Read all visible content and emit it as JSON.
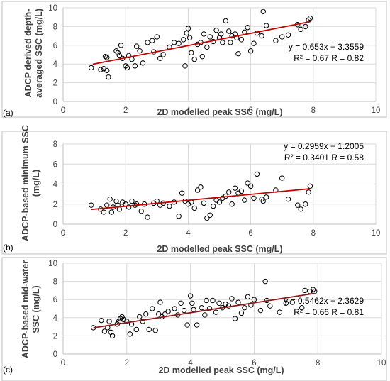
{
  "chart_data": [
    {
      "type": "scatter",
      "panel_label": "(a)",
      "xlabel": "2D modelled peak SSC (mg/L)",
      "ylabel_lines": [
        "ADCP derived depth-",
        "averaged SSC (mg/L)"
      ],
      "xlim": [
        0,
        10
      ],
      "ylim": [
        0,
        10
      ],
      "xticks": [
        "0",
        "2",
        "4",
        "6",
        "8",
        "10"
      ],
      "yticks": [
        "0",
        "2",
        "4",
        "6",
        "8",
        "10"
      ],
      "grid": true,
      "trend_color": "#c00000",
      "trend": {
        "slope": 0.653,
        "intercept": 3.3559,
        "x_range": [
          0.95,
          7.9
        ]
      },
      "equation_lines": [
        "y = 0.653x + 3.3559",
        "R² = 0.67 R = 0.82"
      ],
      "x": [
        0.9,
        1.2,
        1.3,
        1.35,
        1.4,
        1.45,
        1.4,
        1.3,
        1.7,
        1.75,
        1.8,
        1.85,
        1.9,
        2.0,
        2.05,
        2.1,
        2.2,
        2.3,
        2.35,
        2.45,
        2.55,
        2.7,
        2.85,
        2.9,
        3.0,
        3.1,
        3.2,
        3.4,
        3.55,
        3.7,
        3.85,
        3.9,
        3.95,
        4.0,
        4.05,
        4.1,
        4.2,
        4.3,
        4.4,
        4.45,
        4.5,
        4.6,
        4.7,
        4.8,
        4.9,
        5.0,
        5.05,
        5.1,
        5.2,
        5.3,
        5.35,
        5.4,
        5.5,
        5.55,
        5.6,
        5.7,
        5.8,
        5.9,
        6.0,
        6.1,
        6.2,
        6.35,
        6.4,
        6.5,
        6.8,
        7.0,
        7.2,
        7.5,
        7.6,
        7.75,
        7.85,
        7.9
      ],
      "y": [
        3.6,
        3.4,
        3.5,
        4.8,
        4.7,
        2.6,
        3.3,
        3.5,
        5.4,
        5.2,
        4.9,
        6.0,
        4.6,
        3.8,
        3.6,
        4.9,
        4.5,
        3.8,
        5.9,
        5.4,
        4.1,
        6.3,
        6.5,
        5.3,
        6.9,
        4.6,
        5.0,
        5.8,
        6.3,
        6.2,
        6.6,
        3.8,
        7.3,
        7.8,
        6.8,
        5.2,
        4.5,
        6.1,
        6.3,
        4.8,
        7.2,
        5.8,
        6.9,
        6.4,
        7.6,
        6.8,
        7.2,
        6.3,
        8.6,
        7.5,
        6.3,
        7.0,
        7.2,
        6.8,
        5.1,
        6.6,
        7.4,
        7.9,
        5.4,
        6.2,
        7.3,
        7.0,
        9.6,
        8.1,
        6.5,
        6.9,
        7.1,
        8.2,
        7.7,
        8.0,
        8.7,
        8.9
      ]
    },
    {
      "type": "scatter",
      "panel_label": "(b)",
      "xlabel": "2D modelled peak SSC (mg/L)",
      "ylabel_lines": [
        "ADCP-based minimum SSC",
        "(mg/L)"
      ],
      "xlim": [
        0,
        10
      ],
      "ylim": [
        0,
        8
      ],
      "xticks": [
        "0",
        "2",
        "4",
        "6",
        "8",
        "10"
      ],
      "yticks": [
        "0",
        "2",
        "4",
        "6",
        "8"
      ],
      "grid": true,
      "trend_color": "#c00000",
      "trend": {
        "slope": 0.2959,
        "intercept": 1.2005,
        "x_range": [
          0.9,
          7.9
        ]
      },
      "equation_lines": [
        "y = 0.2959x + 1.2005",
        "R² = 0.3401 R = 0.58"
      ],
      "x": [
        0.9,
        1.2,
        1.3,
        1.4,
        1.5,
        1.55,
        1.6,
        1.7,
        1.75,
        1.8,
        1.9,
        2.0,
        2.1,
        2.2,
        2.3,
        2.35,
        2.5,
        2.6,
        2.7,
        2.9,
        3.0,
        3.1,
        3.2,
        3.4,
        3.55,
        3.7,
        3.8,
        3.9,
        4.0,
        4.1,
        4.2,
        4.3,
        4.4,
        4.5,
        4.6,
        4.7,
        4.8,
        4.9,
        5.0,
        5.1,
        5.2,
        5.3,
        5.4,
        5.5,
        5.6,
        5.7,
        5.8,
        5.9,
        6.0,
        6.1,
        6.2,
        6.35,
        6.4,
        6.5,
        6.8,
        7.0,
        7.2,
        7.5,
        7.6,
        7.75,
        7.85,
        7.9
      ],
      "y": [
        1.9,
        1.5,
        1.2,
        1.9,
        2.5,
        1.2,
        1.7,
        2.3,
        1.9,
        1.5,
        2.2,
        2.0,
        1.7,
        2.3,
        1.9,
        2.0,
        1.3,
        2.0,
        0.7,
        2.1,
        2.3,
        1.9,
        2.1,
        1.8,
        2.2,
        0.8,
        3.1,
        2.3,
        2.0,
        2.2,
        1.6,
        3.4,
        3.7,
        2.1,
        0.6,
        0.9,
        1.8,
        2.4,
        2.2,
        2.6,
        2.8,
        3.2,
        2.0,
        3.6,
        3.1,
        3.3,
        2.4,
        4.1,
        3.8,
        2.6,
        5.0,
        2.5,
        2.3,
        2.7,
        3.4,
        4.6,
        2.5,
        1.9,
        1.5,
        2.0,
        3.2,
        3.8
      ]
    },
    {
      "type": "scatter",
      "panel_label": "(c)",
      "xlabel": "2D modelled peak SSC (mg/L)",
      "ylabel_lines": [
        "ADCP-based mid-water",
        "SSC (mg/L)"
      ],
      "xlim": [
        0,
        10
      ],
      "ylim": [
        0,
        10
      ],
      "xticks": [
        "0",
        "2",
        "4",
        "6",
        "8",
        "10"
      ],
      "yticks": [
        "0",
        "2",
        "4",
        "6",
        "8",
        "10"
      ],
      "grid": true,
      "trend_color": "#8b1a1a",
      "trend": {
        "slope": 0.5462,
        "intercept": 2.3629,
        "x_range": [
          0.95,
          7.9
        ]
      },
      "equation_lines": [
        "y = 0.5462x + 2.3629",
        "R² = 0.66 R = 0.81"
      ],
      "x": [
        0.95,
        1.2,
        1.3,
        1.4,
        1.45,
        1.5,
        1.55,
        1.7,
        1.75,
        1.8,
        1.85,
        1.9,
        2.0,
        2.1,
        2.15,
        2.3,
        2.4,
        2.5,
        2.6,
        2.7,
        2.8,
        2.9,
        3.0,
        3.05,
        3.1,
        3.2,
        3.3,
        3.5,
        3.6,
        3.7,
        3.8,
        3.9,
        4.0,
        4.05,
        4.1,
        4.2,
        4.35,
        4.45,
        4.5,
        4.6,
        4.7,
        4.8,
        4.9,
        5.0,
        5.1,
        5.2,
        5.3,
        5.4,
        5.5,
        5.6,
        5.7,
        5.8,
        5.9,
        6.0,
        6.2,
        6.35,
        6.4,
        6.5,
        6.8,
        7.0,
        7.2,
        7.5,
        7.6,
        7.75,
        7.85,
        7.9
      ],
      "y": [
        2.9,
        3.7,
        2.5,
        2.9,
        3.6,
        2.4,
        2.0,
        3.3,
        3.6,
        3.9,
        4.1,
        3.8,
        3.6,
        2.2,
        3.3,
        2.7,
        4.1,
        3.6,
        4.4,
        2.7,
        5.0,
        2.6,
        4.4,
        5.7,
        4.1,
        4.4,
        4.7,
        5.0,
        4.3,
        5.6,
        4.8,
        3.2,
        6.4,
        5.6,
        4.9,
        3.2,
        5.1,
        4.3,
        5.9,
        5.0,
        5.9,
        4.6,
        5.6,
        5.1,
        5.5,
        5.3,
        6.1,
        3.9,
        5.7,
        4.5,
        5.1,
        6.3,
        5.4,
        6.0,
        4.8,
        8.0,
        5.9,
        5.3,
        4.6,
        5.6,
        5.7,
        5.1,
        7.0,
        6.9,
        7.1,
        6.9
      ]
    }
  ]
}
